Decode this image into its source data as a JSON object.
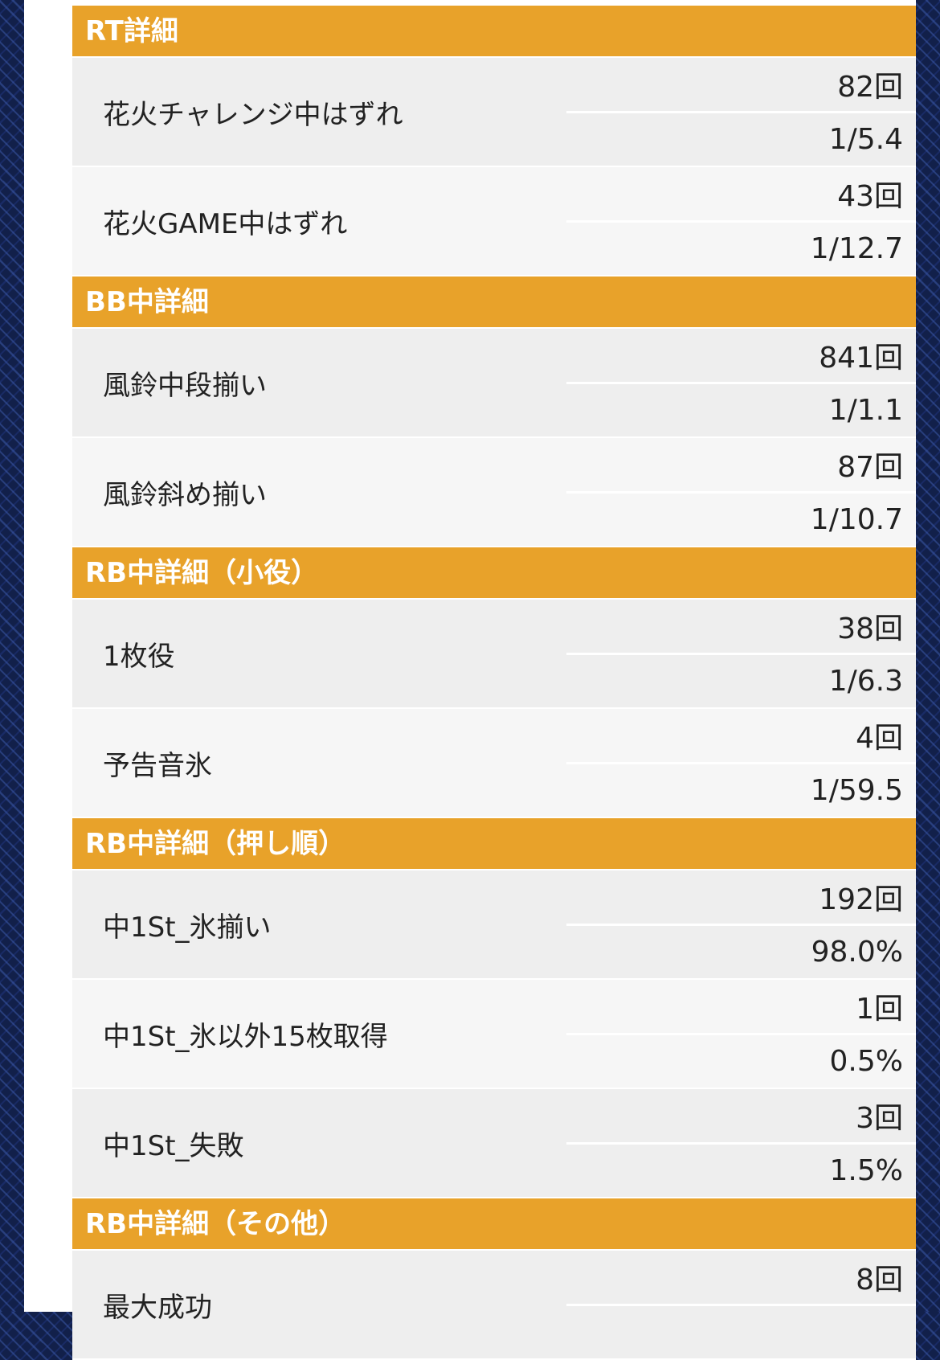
{
  "sections": [
    {
      "title": "RT詳細",
      "rows": [
        {
          "label": "花火チャレンジ中はずれ",
          "count": "82回",
          "rate": "1/5.4"
        },
        {
          "label": "花火GAME中はずれ",
          "count": "43回",
          "rate": "1/12.7"
        }
      ]
    },
    {
      "title": "BB中詳細",
      "rows": [
        {
          "label": "風鈴中段揃い",
          "count": "841回",
          "rate": "1/1.1"
        },
        {
          "label": "風鈴斜め揃い",
          "count": "87回",
          "rate": "1/10.7"
        }
      ]
    },
    {
      "title": "RB中詳細（小役）",
      "rows": [
        {
          "label": "1枚役",
          "count": "38回",
          "rate": "1/6.3"
        },
        {
          "label": "予告音氷",
          "count": "4回",
          "rate": "1/59.5"
        }
      ]
    },
    {
      "title": "RB中詳細（押し順）",
      "rows": [
        {
          "label": "中1St_氷揃い",
          "count": "192回",
          "rate": "98.0%"
        },
        {
          "label": "中1St_氷以外15枚取得",
          "count": "1回",
          "rate": "0.5%"
        },
        {
          "label": "中1St_失敗",
          "count": "3回",
          "rate": "1.5%"
        }
      ]
    },
    {
      "title": "RB中詳細（その他）",
      "rows": [
        {
          "label": "最大成功",
          "count": "8回",
          "rate": ""
        }
      ]
    }
  ]
}
